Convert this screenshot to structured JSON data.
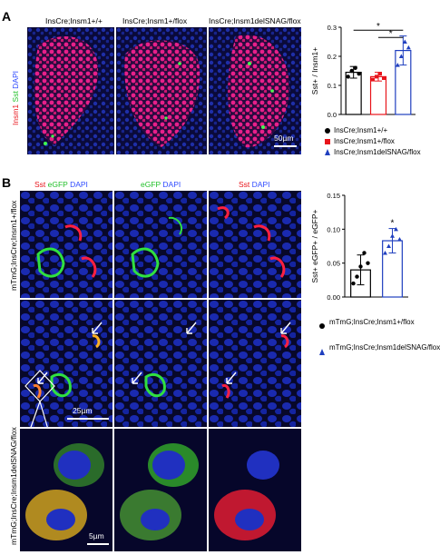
{
  "panel_a": {
    "letter": "A",
    "column_titles": [
      "InsCre;Insm1+/+",
      "InsCre;Insm1+/flox",
      "InsCre;Insm1delSNAG/flox"
    ],
    "row_label": {
      "insm1": "Insm1",
      "sst": "Sst",
      "dapi": "DAPI"
    },
    "scalebar": "50µm"
  },
  "panel_b": {
    "letter": "B",
    "column_titles": [
      {
        "a": "Sst",
        "b": "eGFP",
        "c": "DAPI"
      },
      {
        "a": "eGFP",
        "b": "DAPI"
      },
      {
        "a": "Sst",
        "b": "DAPI"
      }
    ],
    "row_labels": [
      "mTmG;InsCre;Insm1+/flox",
      "mTmG;InsCre;Insm1delSNAG/flox"
    ],
    "scalebar_top": "25µm",
    "scalebar_bottom": "5µm"
  },
  "chart_data": [
    {
      "type": "bar",
      "ylabel": "Sst+ / Insm1+",
      "ylim": [
        0,
        0.3
      ],
      "yticks": [
        "0.0",
        "0.1",
        "0.2",
        "0.3"
      ],
      "categories": [
        "InsCre;Insm1+/+",
        "InsCre;Insm1+/flox",
        "InsCre;Insm1delSNAG/flox"
      ],
      "values": [
        0.145,
        0.13,
        0.22
      ],
      "errors": [
        0.02,
        0.015,
        0.05
      ],
      "points": [
        [
          0.13,
          0.15,
          0.16,
          0.14
        ],
        [
          0.12,
          0.13,
          0.14,
          0.125
        ],
        [
          0.17,
          0.2,
          0.25,
          0.23
        ]
      ],
      "colors": [
        "#000000",
        "#e8141b",
        "#1f3fbf"
      ],
      "markers": [
        "circle",
        "square",
        "triangle"
      ],
      "significance": [
        "*",
        "*"
      ],
      "legend": [
        "InsCre;Insm1+/+",
        "InsCre;Insm1+/flox",
        "InsCre;Insm1delSNAG/flox"
      ]
    },
    {
      "type": "bar",
      "ylabel": "Sst+ eGFP+ / eGFP+",
      "ylim": [
        0,
        0.15
      ],
      "yticks": [
        "0.00",
        "0.05",
        "0.10",
        "0.15"
      ],
      "categories": [
        "mTmG;InsCre;Insm1+/flox",
        "mTmG;InsCre;Insm1delSNAG/flox"
      ],
      "values": [
        0.04,
        0.083
      ],
      "errors": [
        0.022,
        0.018
      ],
      "points": [
        [
          0.02,
          0.03,
          0.045,
          0.065,
          0.05
        ],
        [
          0.065,
          0.075,
          0.09,
          0.1,
          0.085
        ]
      ],
      "colors": [
        "#000000",
        "#1f3fbf"
      ],
      "markers": [
        "circle",
        "triangle"
      ],
      "significance": [
        "*"
      ],
      "legend": [
        "mTmG;InsCre;Insm1+/flox",
        "mTmG;InsCre;Insm1delSNAG/flox"
      ]
    }
  ]
}
